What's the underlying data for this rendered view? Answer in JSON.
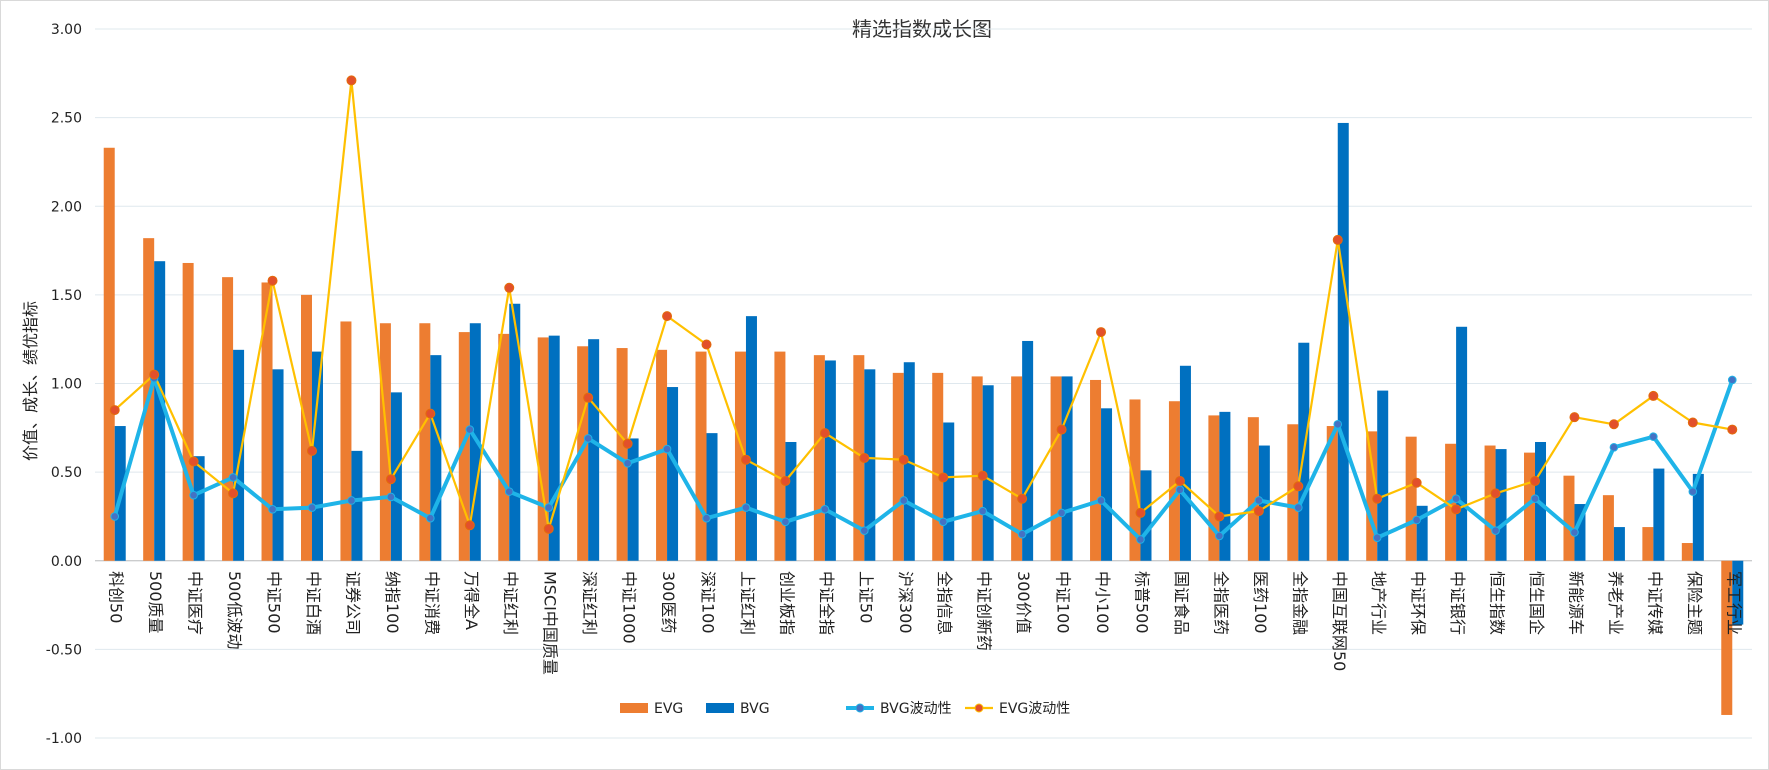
{
  "chart_data": {
    "type": "bar",
    "title": "精选指数成长图",
    "ylabel": "价值、成长、绩优指标",
    "xlabel": "",
    "ylim": [
      -1.0,
      3.0
    ],
    "yticks": [
      "3.00",
      "2.50",
      "2.00",
      "1.50",
      "1.00",
      "0.50",
      "0.00",
      "-0.50",
      "-1.00"
    ],
    "ytick_values": [
      3.0,
      2.5,
      2.0,
      1.5,
      1.0,
      0.5,
      0.0,
      -0.5,
      -1.0
    ],
    "grid": true,
    "legend_position": "bottom",
    "categories": [
      "科创50",
      "500质量",
      "中证医疗",
      "500低波动",
      "中证500",
      "中证白酒",
      "证券公司",
      "纳指100",
      "中证消费",
      "万得全A",
      "中证红利",
      "MSCI中国质量",
      "深证红利",
      "中证1000",
      "300医药",
      "深证100",
      "上证红利",
      "创业板指",
      "中证全指",
      "上证50",
      "沪深300",
      "全指信息",
      "中证创新药",
      "300价值",
      "中证100",
      "中小100",
      "标普500",
      "国证食品",
      "全指医药",
      "医药100",
      "全指金融",
      "中国互联网50",
      "地产行业",
      "中证环保",
      "中证银行",
      "恒生指数",
      "恒生国企",
      "新能源车",
      "养老产业",
      "中证传媒",
      "保险主题",
      "军工行业"
    ],
    "series": [
      {
        "name": "EVG",
        "kind": "bar",
        "color": "#ED7D31",
        "values": [
          2.33,
          1.82,
          1.68,
          1.6,
          1.57,
          1.5,
          1.35,
          1.34,
          1.34,
          1.29,
          1.28,
          1.26,
          1.21,
          1.2,
          1.19,
          1.18,
          1.18,
          1.18,
          1.16,
          1.16,
          1.06,
          1.06,
          1.04,
          1.04,
          1.04,
          1.02,
          0.91,
          0.9,
          0.82,
          0.81,
          0.77,
          0.76,
          0.73,
          0.7,
          0.66,
          0.65,
          0.61,
          0.48,
          0.37,
          0.19,
          0.1,
          -0.87
        ]
      },
      {
        "name": "BVG",
        "kind": "bar",
        "color": "#0070C0",
        "values": [
          0.76,
          1.69,
          0.59,
          1.19,
          1.08,
          1.18,
          0.62,
          0.95,
          1.16,
          1.34,
          1.45,
          1.27,
          1.25,
          0.69,
          0.98,
          0.72,
          1.38,
          0.67,
          1.13,
          1.08,
          1.12,
          0.78,
          0.99,
          1.24,
          1.04,
          0.86,
          0.51,
          1.1,
          0.84,
          0.65,
          1.23,
          2.47,
          0.96,
          0.31,
          1.32,
          0.63,
          0.67,
          0.32,
          0.19,
          0.52,
          0.49,
          -0.36
        ]
      },
      {
        "name": "BVG波动性",
        "kind": "line",
        "color": "#1FB4E8",
        "marker_color": "#4472C4",
        "values": [
          0.25,
          1.03,
          0.37,
          0.47,
          0.29,
          0.3,
          0.34,
          0.36,
          0.24,
          0.74,
          0.39,
          0.3,
          0.69,
          0.55,
          0.63,
          0.24,
          0.3,
          0.22,
          0.29,
          0.17,
          0.34,
          0.22,
          0.28,
          0.15,
          0.27,
          0.34,
          0.12,
          0.4,
          0.14,
          0.34,
          0.3,
          0.77,
          0.13,
          0.23,
          0.35,
          0.17,
          0.35,
          0.16,
          0.64,
          0.7,
          0.39,
          1.02
        ]
      },
      {
        "name": "EVG波动性",
        "kind": "line",
        "color": "#FFC000",
        "marker_color": "#E2502B",
        "values": [
          0.85,
          1.05,
          0.56,
          0.38,
          1.58,
          0.62,
          2.71,
          0.46,
          0.83,
          0.2,
          1.54,
          0.18,
          0.92,
          0.66,
          1.38,
          1.22,
          0.57,
          0.45,
          0.72,
          0.58,
          0.57,
          0.47,
          0.48,
          0.35,
          0.74,
          1.29,
          0.27,
          0.45,
          0.25,
          0.28,
          0.42,
          1.81,
          0.35,
          0.44,
          0.29,
          0.38,
          0.45,
          0.81,
          0.77,
          0.93,
          0.78,
          0.74
        ]
      }
    ]
  }
}
